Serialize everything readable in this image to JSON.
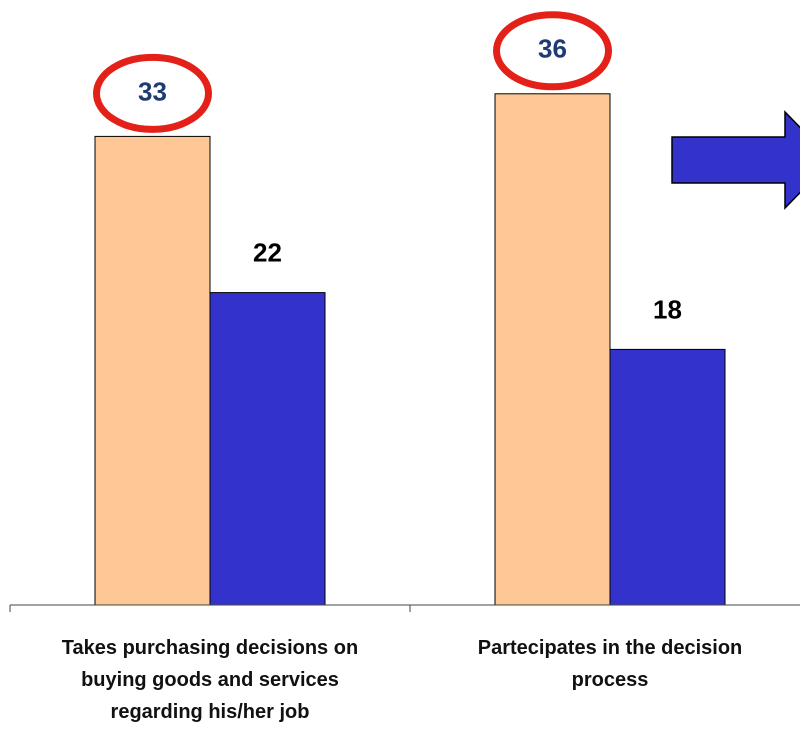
{
  "chart_data": {
    "type": "bar",
    "categories": [
      "Takes purchasing decisions on buying goods and services regarding his/her job",
      "Partecipates in the decision process"
    ],
    "series": [
      {
        "color": "#fdc896",
        "values": [
          33,
          36
        ]
      },
      {
        "color": "#3333cc",
        "values": [
          22,
          18
        ]
      }
    ]
  }
}
